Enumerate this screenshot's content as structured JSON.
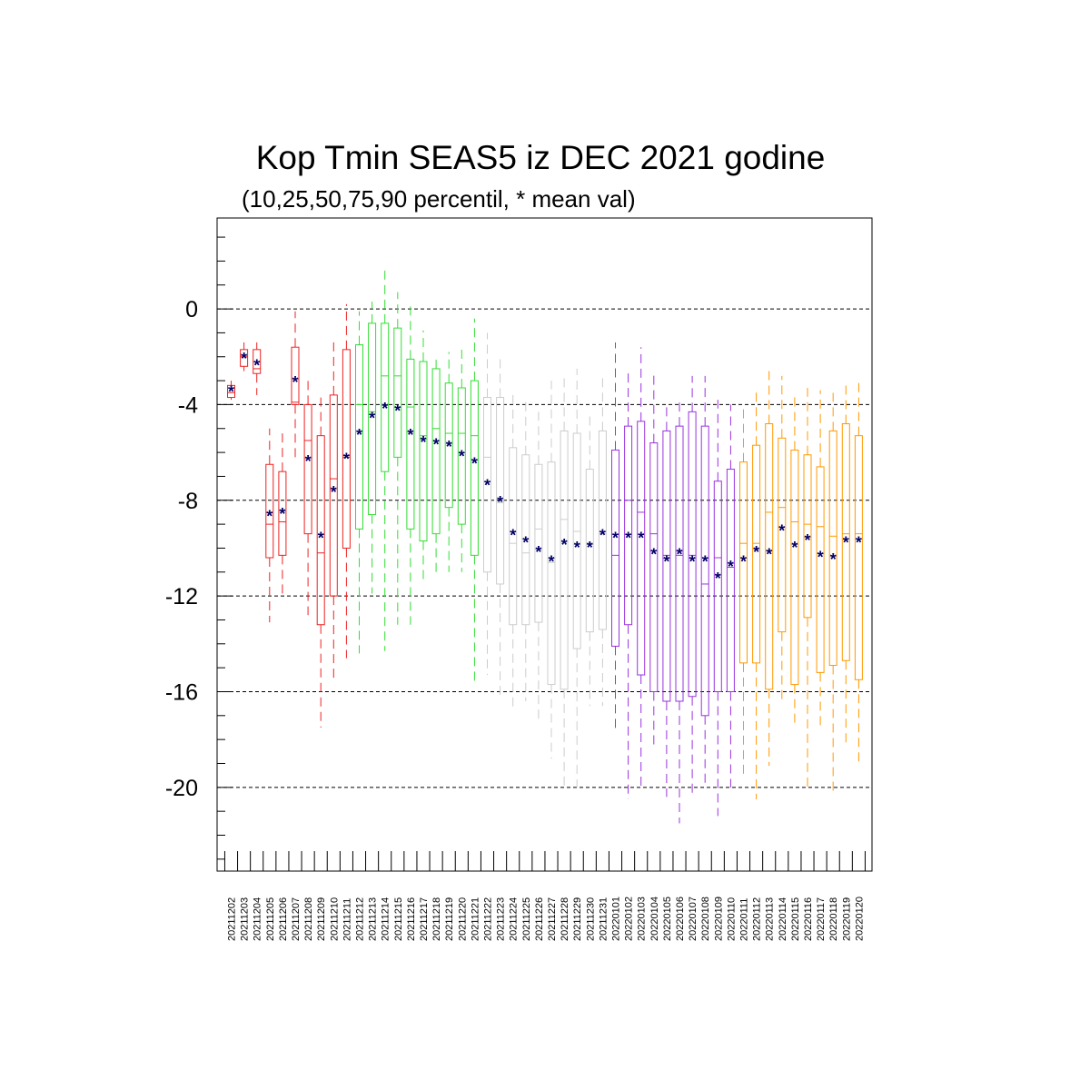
{
  "chart_data": {
    "type": "boxplot",
    "title": "Kop Tmin SEAS5 iz DEC 2021 godine",
    "subtitle": "(10,25,50,75,90 percentil, * mean val)",
    "xlabel": "",
    "ylabel": "",
    "ylim": [
      -23.5,
      3.8
    ],
    "yticks": [
      0,
      -4,
      -8,
      -12,
      -16,
      -20
    ],
    "ytick_labels": [
      "0",
      "-4",
      "-8",
      "-12",
      "-16",
      "-20"
    ],
    "grid": "dashed horizontal lines at labeled y ticks",
    "legend": "none",
    "mean_marker_color": "#000066",
    "groups": [
      {
        "color": "#ee2222",
        "from": "20211202",
        "to": "20211211"
      },
      {
        "color": "#33dd33",
        "from": "20211212",
        "to": "20211221"
      },
      {
        "color": "#cccccc",
        "from": "20211222",
        "to": "20211231"
      },
      {
        "color": "#9933dd",
        "from": "20220101",
        "to": "20220110"
      },
      {
        "color": "#ff9900",
        "from": "20220111",
        "to": "20220120"
      }
    ],
    "categories": [
      "20211202",
      "20211203",
      "20211204",
      "20211205",
      "20211206",
      "20211207",
      "20211208",
      "20211209",
      "20211210",
      "20211211",
      "20211212",
      "20211213",
      "20211214",
      "20211215",
      "20211216",
      "20211217",
      "20211218",
      "20211219",
      "20211220",
      "20211221",
      "20211222",
      "20211223",
      "20211224",
      "20211225",
      "20211226",
      "20211227",
      "20211228",
      "20211229",
      "20211230",
      "20211231",
      "20220101",
      "20220102",
      "20220103",
      "20220104",
      "20220105",
      "20220106",
      "20220107",
      "20220108",
      "20220109",
      "20220110",
      "20220111",
      "20220112",
      "20220113",
      "20220114",
      "20220115",
      "20220116",
      "20220117",
      "20220118",
      "20220119",
      "20220120"
    ],
    "p10": [
      -3.8,
      -2.6,
      -3.6,
      -13.1,
      -12.0,
      -6.2,
      -12.8,
      -17.5,
      -15.6,
      -14.6,
      -14.4,
      -11.9,
      -14.3,
      -13.2,
      -13.2,
      -11.4,
      -11.0,
      -11.0,
      -11.0,
      -15.7,
      -15.3,
      -16.3,
      -16.7,
      -16.4,
      -17.3,
      -18.8,
      -20.0,
      -20.0,
      -16.6,
      -16.6,
      -17.6,
      -20.5,
      -20.1,
      -18.3,
      -20.4,
      -21.5,
      -20.3,
      -20.0,
      -21.2,
      -20.0,
      -19.6,
      -20.5,
      -19.1,
      -16.4,
      -17.5,
      -20.1,
      -17.6,
      -20.3,
      -18.2,
      -19.0
    ],
    "q25": [
      -3.7,
      -2.4,
      -2.7,
      -10.4,
      -10.3,
      -4.0,
      -9.4,
      -13.2,
      -12.0,
      -10.0,
      -9.2,
      -8.6,
      -6.8,
      -6.2,
      -9.2,
      -9.7,
      -9.4,
      -8.3,
      -9.0,
      -10.3,
      -11.0,
      -11.5,
      -13.2,
      -13.2,
      -13.1,
      -15.7,
      -15.9,
      -14.2,
      -13.5,
      -13.4,
      -14.1,
      -13.2,
      -15.3,
      -16.0,
      -16.4,
      -16.4,
      -16.2,
      -17.0,
      -16.0,
      -16.0,
      -14.8,
      -14.8,
      -15.9,
      -13.5,
      -15.7,
      -12.9,
      -15.2,
      -14.9,
      -14.7,
      -15.5
    ],
    "median": [
      -3.5,
      -2.0,
      -2.5,
      -9.0,
      -8.9,
      -3.9,
      -5.5,
      -10.2,
      -7.1,
      -6.2,
      -4.0,
      -4.3,
      -2.8,
      -2.8,
      -4.1,
      -5.3,
      -5.0,
      -5.2,
      -5.2,
      -5.3,
      -6.2,
      -8.1,
      -9.8,
      -10.2,
      -9.2,
      -10.6,
      -8.8,
      -9.3,
      -9.8,
      -9.4,
      -10.3,
      -8.0,
      -8.5,
      -9.4,
      -10.3,
      -10.3,
      -10.3,
      -11.5,
      -10.4,
      -10.8,
      -9.8,
      -9.8,
      -8.5,
      -8.3,
      -8.9,
      -9.0,
      -9.1,
      -9.5,
      -9.4,
      -9.4
    ],
    "q75": [
      -3.2,
      -1.7,
      -1.7,
      -6.5,
      -6.8,
      -1.6,
      -4.0,
      -5.3,
      -3.6,
      -1.7,
      -1.5,
      -0.6,
      -0.6,
      -0.8,
      -2.1,
      -2.2,
      -2.5,
      -3.1,
      -3.3,
      -3.0,
      -3.7,
      -3.7,
      -5.8,
      -6.1,
      -6.5,
      -6.4,
      -5.1,
      -5.2,
      -6.7,
      -5.1,
      -5.9,
      -4.9,
      -4.7,
      -5.6,
      -5.1,
      -4.9,
      -4.3,
      -4.9,
      -7.2,
      -6.7,
      -6.4,
      -5.7,
      -4.8,
      -5.4,
      -5.9,
      -6.1,
      -6.6,
      -5.1,
      -4.8,
      -5.3
    ],
    "p90": [
      -3.0,
      -1.4,
      -1.4,
      -5.0,
      -5.0,
      -0.1,
      -2.9,
      -3.5,
      -1.2,
      0.2,
      -0.1,
      0.3,
      1.8,
      0.7,
      0.3,
      -0.9,
      -1.9,
      -1.8,
      -1.7,
      -0.4,
      -1.0,
      -1.9,
      -3.5,
      -3.8,
      -4.3,
      -3.0,
      -2.9,
      -2.5,
      -4.3,
      -2.7,
      -1.4,
      -2.6,
      -1.6,
      -2.6,
      -3.9,
      -3.8,
      -2.8,
      -2.8,
      -3.8,
      -4.0,
      -4.0,
      -3.5,
      -2.6,
      -2.8,
      -3.6,
      -3.3,
      -3.4,
      -3.5,
      -3.2,
      -2.9
    ],
    "mean": [
      -3.4,
      -2.0,
      -2.3,
      -8.6,
      -8.5,
      -3.0,
      -6.3,
      -9.5,
      -7.6,
      -6.2,
      -5.2,
      -4.5,
      -4.1,
      -4.2,
      -5.2,
      -5.5,
      -5.6,
      -5.7,
      -6.1,
      -6.4,
      -7.3,
      -8.0,
      -9.4,
      -9.7,
      -10.1,
      -10.5,
      -9.8,
      -9.9,
      -9.9,
      -9.4,
      -9.5,
      -9.5,
      -9.5,
      -10.2,
      -10.5,
      -10.2,
      -10.5,
      -10.5,
      -11.2,
      -10.7,
      -10.5,
      -10.1,
      -10.2,
      -9.2,
      -9.9,
      -9.6,
      -10.3,
      -10.4,
      -9.7,
      -9.7
    ]
  }
}
